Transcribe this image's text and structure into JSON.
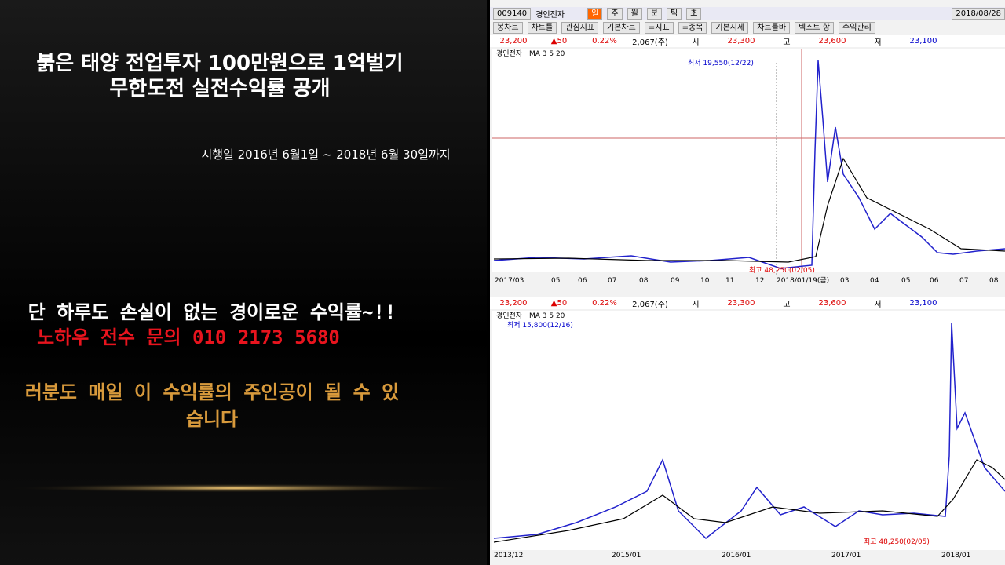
{
  "left_panel": {
    "title_lines": [
      "붉은 태양 전업투자  100만원으로 1억벌기",
      "무한도전 실전수익률  공개"
    ],
    "period": "시행일 2016년 6월1일  ~ 2018년 6월 30일까지",
    "claim": "단 하루도 손실이 없는 경이로운 수익률~!!",
    "contact": "노하우 전수 문의 010 2173 5680",
    "promo_lines": [
      "러분도 매일 이 수익률의 주인공이 될 수 있",
      "습니다"
    ]
  },
  "toolbar": {
    "code": "009140",
    "name": "경인전자",
    "period_buttons": [
      "일",
      "주",
      "월",
      "분",
      "틱",
      "초"
    ],
    "date": "2018/08/28",
    "buttons": [
      "봉차트",
      "차트틀",
      "관심지표",
      "기본차트",
      "=지표",
      "=종목",
      "기본시세",
      "차트툴바",
      "텍스트 항",
      "수익관리"
    ]
  },
  "quote": {
    "price": "23,200",
    "change": "▲50",
    "rate": "0.22%",
    "volume": "2,067(주)",
    "open_label": "시",
    "open": "23,300",
    "high_label": "고",
    "high": "23,600",
    "low_label": "저",
    "low": "23,100"
  },
  "upper_chart": {
    "name": "경인전자",
    "ma": "MA 3 5 20",
    "low_note": "최저 19,550(12/22)",
    "high_note": "최고 48,250(02/05)",
    "x_labels": [
      "2017/03",
      "05",
      "06",
      "07",
      "08",
      "09",
      "10",
      "11",
      "12",
      "2018/01/19(금)",
      "03",
      "04",
      "05",
      "06",
      "07",
      "08"
    ]
  },
  "lower_chart": {
    "name": "경인전자",
    "ma": "MA 3 5 20",
    "low_note": "최저 15,800(12/16)",
    "high_note": "최고 48,250(02/05)",
    "x_labels": [
      "2013/12",
      "2015/01",
      "2016/01",
      "2017/01",
      "2018/01"
    ]
  }
}
